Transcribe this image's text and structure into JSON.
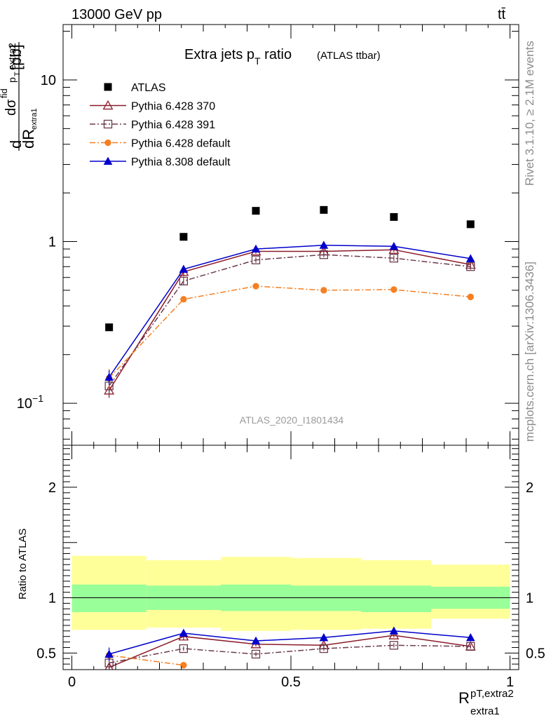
{
  "header": {
    "energy_label": "13000 GeV pp",
    "process_label": "tt̄"
  },
  "side_labels": {
    "rivet": "Rivet 3.1.10, ≥ 2.1M events",
    "mcplots": "mcplots.cern.ch [arXiv:1306.3436]"
  },
  "chart_data": [
    {
      "type": "scatter",
      "panel": "main",
      "title": "Extra jets p_T ratio",
      "title_main": "Extra jets p",
      "title_sub": "T",
      "title_tail": " ratio",
      "title_note": "(ATLAS ttbar)",
      "analysis_label": "ATLAS_2020_I1801434",
      "y_scale": "log",
      "ylim": [
        0.055,
        22
      ],
      "xlim": [
        -0.02,
        1.02
      ],
      "ylabel_parts": {
        "d": "d",
        "sigma": "dσ",
        "fid": "fid",
        "p": "p",
        "t": "T",
        "extra2": "extra2",
        "dR": "dR",
        "extra1": "extra1",
        "unit": "[pb]"
      },
      "y_ticks": [
        {
          "value": 0.1,
          "label": "10",
          "exp": "−1"
        },
        {
          "value": 1,
          "label": "1",
          "exp": ""
        },
        {
          "value": 10,
          "label": "10",
          "exp": ""
        }
      ],
      "legend_position": "top-left",
      "x": [
        0.085,
        0.255,
        0.42,
        0.575,
        0.735,
        0.91
      ],
      "series": [
        {
          "name": "ATLAS",
          "color": "#000000",
          "marker": "square",
          "line": "none",
          "values": [
            0.295,
            1.07,
            1.55,
            1.57,
            1.42,
            1.28
          ]
        },
        {
          "name": "Pythia 6.428 370",
          "color": "#8b1a2a",
          "marker": "triangle-open",
          "line": "solid",
          "values": [
            0.12,
            0.65,
            0.87,
            0.87,
            0.89,
            0.72
          ],
          "err": [
            0.012,
            0.04,
            0.03,
            0.03,
            0.03,
            0.03
          ]
        },
        {
          "name": "Pythia 6.428 391",
          "color": "#6b3b4b",
          "marker": "square-open",
          "line": "dashdot",
          "values": [
            0.128,
            0.57,
            0.77,
            0.83,
            0.79,
            0.7
          ],
          "err": [
            0.015,
            0.03,
            0.03,
            0.03,
            0.03,
            0.03
          ]
        },
        {
          "name": "Pythia 6.428 default",
          "color": "#f57f21",
          "marker": "circle",
          "line": "dashdot",
          "values": [
            0.143,
            0.44,
            0.53,
            0.5,
            0.505,
            0.455
          ],
          "err": [
            0.02,
            0.02,
            0.02,
            0.02,
            0.02,
            0.02
          ]
        },
        {
          "name": "Pythia 8.308 default",
          "color": "#0000cc",
          "marker": "triangle",
          "line": "solid",
          "values": [
            0.145,
            0.675,
            0.9,
            0.95,
            0.935,
            0.785
          ],
          "err": [
            0.015,
            0.04,
            0.03,
            0.03,
            0.03,
            0.03
          ]
        }
      ]
    },
    {
      "type": "scatter",
      "panel": "ratio",
      "ylabel": "Ratio to ATLAS",
      "xlabel_main": "R",
      "xlabel_sup": "pT,extra2",
      "xlabel_sub": "extra1",
      "ylim": [
        0.35,
        2.38
      ],
      "xlim": [
        -0.02,
        1.02
      ],
      "x_ticks": [
        {
          "value": 0,
          "label": "0"
        },
        {
          "value": 0.5,
          "label": "0.5"
        },
        {
          "value": 1,
          "label": "1"
        }
      ],
      "y_ticks": [
        {
          "value": 0.5,
          "label": "0.5"
        },
        {
          "value": 1,
          "label": "1"
        },
        {
          "value": 2,
          "label": "2"
        }
      ],
      "bands": [
        {
          "x0": 0.0,
          "x1": 0.17,
          "inner": [
            0.87,
            1.12
          ],
          "outer": [
            0.71,
            1.38
          ]
        },
        {
          "x0": 0.17,
          "x1": 0.34,
          "inner": [
            0.89,
            1.11
          ],
          "outer": [
            0.73,
            1.34
          ]
        },
        {
          "x0": 0.34,
          "x1": 0.5,
          "inner": [
            0.88,
            1.12
          ],
          "outer": [
            0.7,
            1.37
          ]
        },
        {
          "x0": 0.5,
          "x1": 0.66,
          "inner": [
            0.88,
            1.11
          ],
          "outer": [
            0.71,
            1.36
          ]
        },
        {
          "x0": 0.66,
          "x1": 0.82,
          "inner": [
            0.87,
            1.11
          ],
          "outer": [
            0.72,
            1.34
          ]
        },
        {
          "x0": 0.82,
          "x1": 1.0,
          "inner": [
            0.9,
            1.1
          ],
          "outer": [
            0.81,
            1.3
          ]
        }
      ],
      "band_colors": {
        "inner": "#99ff99",
        "outer": "#ffff99"
      },
      "x": [
        0.085,
        0.255,
        0.42,
        0.575,
        0.735,
        0.91
      ],
      "series": [
        {
          "name": "Pythia 6.428 370",
          "color": "#8b1a2a",
          "marker": "triangle-open",
          "line": "solid",
          "values": [
            0.37,
            0.65,
            0.58,
            0.57,
            0.66,
            0.56
          ],
          "err": [
            0.03,
            0.03,
            0.02,
            0.02,
            0.02,
            0.02
          ]
        },
        {
          "name": "Pythia 6.428 391",
          "color": "#6b3b4b",
          "marker": "square-open",
          "line": "dashdot",
          "values": [
            0.41,
            0.54,
            0.49,
            0.54,
            0.57,
            0.56
          ],
          "err": [
            0.03,
            0.02,
            0.02,
            0.02,
            0.02,
            0.02
          ]
        },
        {
          "name": "Pythia 6.428 default",
          "color": "#f57f21",
          "marker": "circle",
          "line": "dashdot",
          "values": [
            0.48,
            0.39,
            null,
            null,
            null,
            null
          ],
          "err": [
            0.03,
            0.02,
            0,
            0,
            0,
            0
          ]
        },
        {
          "name": "Pythia 8.308 default",
          "color": "#0000cc",
          "marker": "triangle",
          "line": "solid",
          "values": [
            0.49,
            0.68,
            0.61,
            0.64,
            0.7,
            0.64
          ],
          "err": [
            0.06,
            0.03,
            0.03,
            0.03,
            0.02,
            0.03
          ]
        }
      ]
    }
  ]
}
